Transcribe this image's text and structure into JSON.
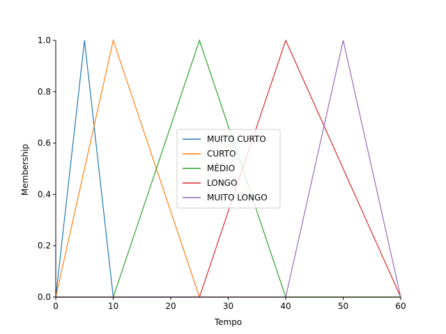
{
  "chart_data": {
    "type": "line",
    "title": "",
    "xlabel": "Tempo",
    "ylabel": "Membership",
    "xlim": [
      0,
      60
    ],
    "ylim": [
      0,
      1.0
    ],
    "xticks": [
      0,
      10,
      20,
      30,
      40,
      50,
      60
    ],
    "yticks": [
      0.0,
      0.2,
      0.4,
      0.6,
      0.8,
      1.0
    ],
    "ytick_labels": [
      "0.0",
      "0.2",
      "0.4",
      "0.6",
      "0.8",
      "1.0"
    ],
    "grid": false,
    "legend_position": "center",
    "series": [
      {
        "name": "MUITO CURTO",
        "color": "#1f77b4",
        "x": [
          0,
          5,
          10,
          60
        ],
        "y": [
          0,
          1,
          0,
          0
        ]
      },
      {
        "name": "CURTO",
        "color": "#ff7f0e",
        "x": [
          0,
          10,
          25,
          60
        ],
        "y": [
          0,
          1,
          0,
          0
        ]
      },
      {
        "name": "MÉDIO",
        "color": "#2ca02c",
        "x": [
          0,
          10,
          25,
          40,
          60
        ],
        "y": [
          0,
          0,
          1,
          0,
          0
        ]
      },
      {
        "name": "LONGO",
        "color": "#d62728",
        "x": [
          0,
          25,
          40,
          60
        ],
        "y": [
          0,
          0,
          1,
          0
        ]
      },
      {
        "name": "MUITO LONGO",
        "color": "#9467bd",
        "x": [
          0,
          40,
          50,
          60
        ],
        "y": [
          0,
          0,
          1,
          0
        ]
      }
    ]
  }
}
